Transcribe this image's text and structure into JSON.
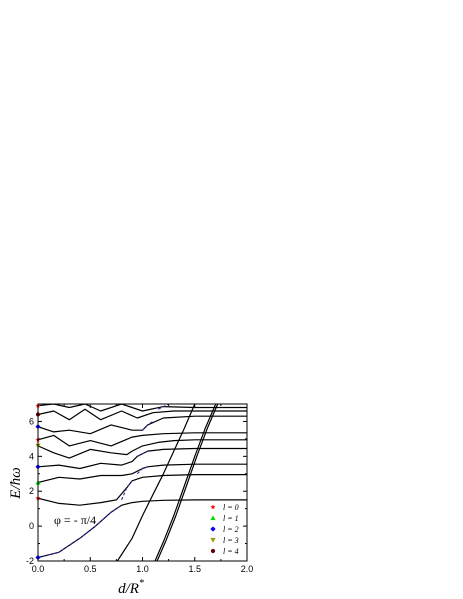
{
  "chart_data": {
    "type": "line",
    "xlabel_main": "d/R",
    "xlabel_sup": "*",
    "ylabel": "E/ħω",
    "xlim": [
      0.0,
      2.0
    ],
    "ylim": [
      -2,
      7
    ],
    "x_ticks": [
      "0.0",
      "0.5",
      "1.0",
      "1.5",
      "2.0"
    ],
    "y_ticks": [
      "-2",
      "0",
      "2",
      "4",
      "6"
    ],
    "annotation": "φ = - π/4",
    "legend": [
      {
        "label": "l = 0",
        "color": "#ff0000",
        "marker": "star"
      },
      {
        "label": "l = 1",
        "color": "#00dd00",
        "marker": "triangle-up"
      },
      {
        "label": "l = 2",
        "color": "#0000ff",
        "marker": "diamond"
      },
      {
        "label": "l = 3",
        "color": "#999900",
        "marker": "triangle-down"
      },
      {
        "label": "l = 4",
        "color": "#660000",
        "marker": "circle"
      }
    ],
    "start_markers": [
      {
        "y": -1.8,
        "l": 2
      },
      {
        "y": 1.6,
        "l": 0
      },
      {
        "y": 2.5,
        "l": 1
      },
      {
        "y": 3.4,
        "l": 2
      },
      {
        "y": 4.6,
        "l": 3
      },
      {
        "y": 4.95,
        "l": 0
      },
      {
        "y": 5.7,
        "l": 2
      },
      {
        "y": 6.4,
        "l": 4
      },
      {
        "y": 6.9,
        "l": 0
      }
    ],
    "series": [
      {
        "style": "solid",
        "x": [
          0.0,
          0.2,
          0.4,
          0.55,
          0.7,
          0.8,
          0.9,
          1.0,
          1.2,
          1.5,
          2.0
        ],
        "y": [
          -1.8,
          -1.5,
          -0.7,
          0.0,
          0.8,
          1.2,
          1.35,
          1.42,
          1.48,
          1.5,
          1.5
        ]
      },
      {
        "style": "solid",
        "x": [
          0.0,
          0.2,
          0.4,
          0.6,
          0.75,
          0.85,
          0.9,
          1.0,
          1.2,
          1.5,
          2.0
        ],
        "y": [
          1.6,
          1.3,
          1.2,
          1.35,
          1.5,
          2.2,
          2.6,
          2.8,
          2.9,
          2.95,
          2.95
        ]
      },
      {
        "style": "solid",
        "x": [
          0.0,
          0.2,
          0.4,
          0.6,
          0.8,
          0.9,
          1.0,
          1.05,
          1.2,
          1.5,
          2.0
        ],
        "y": [
          2.5,
          2.8,
          2.7,
          2.9,
          2.9,
          3.0,
          3.3,
          3.4,
          3.5,
          3.55,
          3.55
        ]
      },
      {
        "style": "solid",
        "x": [
          0.0,
          0.2,
          0.4,
          0.6,
          0.8,
          0.9,
          0.95,
          1.05,
          1.2,
          1.5,
          2.0
        ],
        "y": [
          3.4,
          3.5,
          3.3,
          3.6,
          3.5,
          3.7,
          4.0,
          4.3,
          4.4,
          4.45,
          4.45
        ]
      },
      {
        "style": "solid",
        "x": [
          0.0,
          0.15,
          0.3,
          0.5,
          0.7,
          0.85,
          0.9,
          1.0,
          1.15,
          1.3,
          1.5,
          2.0
        ],
        "y": [
          4.6,
          4.2,
          3.9,
          4.4,
          4.2,
          4.1,
          4.3,
          4.6,
          4.8,
          4.9,
          4.95,
          4.95
        ]
      },
      {
        "style": "solid",
        "x": [
          0.0,
          0.15,
          0.3,
          0.5,
          0.7,
          0.9,
          1.0,
          1.2,
          1.5,
          2.0
        ],
        "y": [
          4.95,
          5.2,
          4.6,
          4.9,
          4.6,
          5.1,
          5.2,
          5.3,
          5.35,
          5.35
        ]
      },
      {
        "style": "solid",
        "x": [
          0.0,
          0.15,
          0.3,
          0.5,
          0.7,
          0.9,
          1.0,
          1.05,
          1.2,
          1.5,
          2.0
        ],
        "y": [
          5.7,
          5.4,
          5.5,
          5.3,
          5.8,
          5.5,
          5.5,
          5.8,
          6.2,
          6.3,
          6.3
        ]
      },
      {
        "style": "solid",
        "x": [
          0.0,
          0.15,
          0.3,
          0.45,
          0.6,
          0.8,
          0.95,
          1.1,
          1.3,
          1.6,
          2.0
        ],
        "y": [
          6.4,
          6.6,
          6.1,
          6.7,
          6.1,
          6.6,
          6.2,
          6.5,
          6.6,
          6.6,
          6.6
        ]
      },
      {
        "style": "solid",
        "x": [
          0.0,
          0.15,
          0.3,
          0.45,
          0.6,
          0.8,
          1.0,
          1.2,
          1.5,
          2.0
        ],
        "y": [
          6.9,
          7.0,
          6.8,
          7.0,
          6.6,
          7.0,
          6.6,
          6.85,
          6.8,
          6.8
        ]
      },
      {
        "style": "solid",
        "x": [
          0.76,
          0.9,
          1.0,
          1.1,
          1.2,
          1.3,
          1.4,
          1.5
        ],
        "y": [
          -2.0,
          -0.7,
          0.6,
          1.8,
          3.0,
          4.3,
          5.6,
          7.0
        ]
      },
      {
        "style": "solid",
        "x": [
          1.12,
          1.2,
          1.3,
          1.4,
          1.5,
          1.6,
          1.7
        ],
        "y": [
          -2.0,
          -0.9,
          0.6,
          2.3,
          4.0,
          5.6,
          7.0
        ]
      },
      {
        "style": "solid",
        "x": [
          1.14,
          1.22,
          1.32,
          1.42,
          1.52,
          1.62,
          1.72
        ],
        "y": [
          -2.0,
          -0.9,
          0.6,
          2.3,
          4.0,
          5.6,
          7.0
        ]
      },
      {
        "style": "dashed",
        "x": [
          0.0,
          0.2,
          0.4,
          0.55,
          0.7,
          0.8
        ],
        "y": [
          -1.8,
          -1.5,
          -0.7,
          0.0,
          0.8,
          1.2
        ]
      },
      {
        "style": "dashed",
        "x": [
          0.8,
          0.85,
          0.9
        ],
        "y": [
          1.5,
          2.2,
          2.6
        ]
      },
      {
        "style": "dashed",
        "x": [
          0.95,
          1.0,
          1.05
        ],
        "y": [
          3.0,
          3.3,
          3.4
        ]
      },
      {
        "style": "dashed",
        "x": [
          0.95,
          1.0,
          1.05
        ],
        "y": [
          4.0,
          4.15,
          4.3
        ]
      },
      {
        "style": "dashed",
        "x": [
          1.0,
          1.05,
          1.1
        ],
        "y": [
          5.5,
          5.8,
          6.0
        ]
      },
      {
        "style": "dashed",
        "x": [
          1.15,
          1.2,
          1.25
        ],
        "y": [
          6.7,
          6.85,
          7.0
        ]
      }
    ]
  }
}
